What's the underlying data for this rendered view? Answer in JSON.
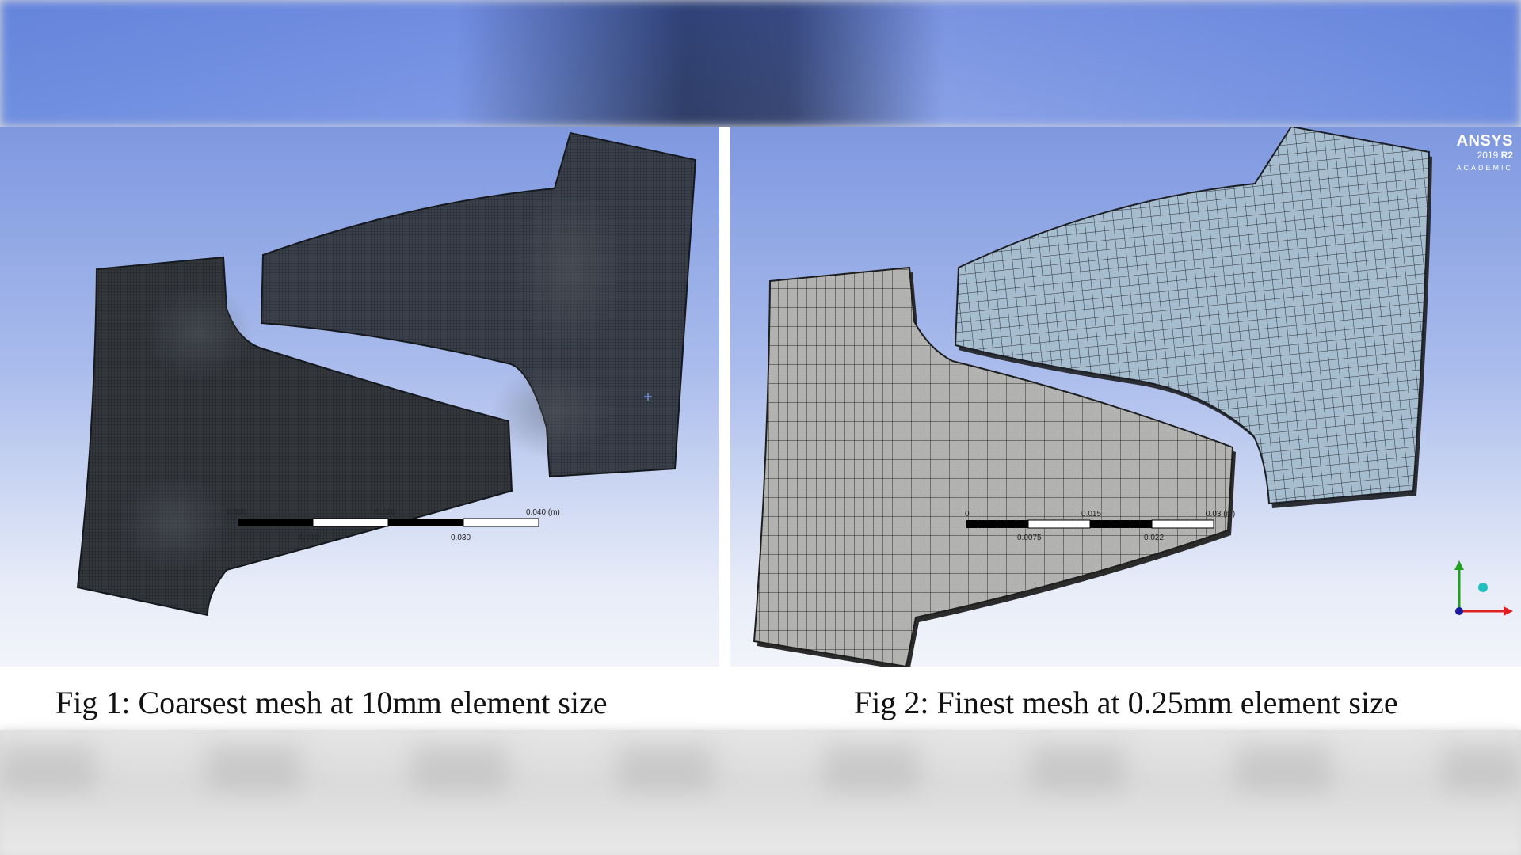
{
  "figures": [
    {
      "caption": "Fig 1: Coarsest mesh at 10mm element size",
      "scale_bar": {
        "top_labels": [
          "0.000",
          "0.020",
          "0.040 (m)"
        ],
        "bottom_labels": [
          "0.010",
          "0.030"
        ]
      }
    },
    {
      "caption": "Fig 2: Finest mesh at 0.25mm element size",
      "scale_bar": {
        "top_labels": [
          "0",
          "0.015",
          "0.03 (m)"
        ],
        "bottom_labels": [
          "0.0075",
          "0.022"
        ]
      }
    }
  ],
  "logo": {
    "brand": "ANSYS",
    "version": "2019",
    "release": "R2",
    "edition": "ACADEMIC"
  },
  "triad": {
    "icon": "axis-triad-icon",
    "colors": {
      "x": "#e02020",
      "y": "#20a020",
      "z": "#1a1aa0"
    }
  },
  "colors": {
    "coarse_mesh_fill": "#2f3338",
    "coarse_mesh_fill_upper": "#343a44",
    "fine_mesh_fill_lower": "#a9a9a7",
    "fine_mesh_fill_upper": "#9fb4c6",
    "mesh_line": "#1e1e1e",
    "viewport_top": "#7e98e0"
  }
}
